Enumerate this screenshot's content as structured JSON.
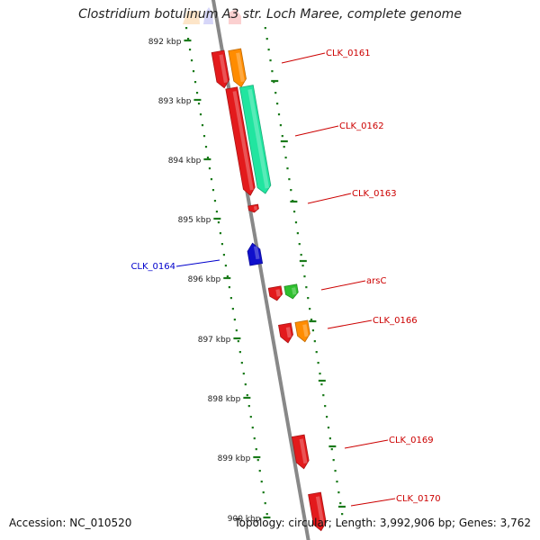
{
  "title": "Clostridium botulinum A3 str. Loch Maree, complete genome",
  "accession": "Accession: NC_010520",
  "topology": "Topology: circular; Length: 3,992,906 bp; Genes: 3,762",
  "colors": {
    "backbone": "#888888",
    "tick": "#1a7a1a",
    "gene_red": "#e31a1c",
    "gene_orange": "#ff8c00",
    "gene_teal": "#21e5a0",
    "gene_green": "#2fc02f",
    "gene_blue": "#1010cc",
    "label_red": "#cc0000",
    "label_blue": "#0000cc"
  },
  "scale": {
    "ticks": [
      "892 kbp",
      "893 kbp",
      "894 kbp",
      "895 kbp",
      "896 kbp",
      "897 kbp",
      "898 kbp",
      "899 kbp",
      "900 kbp"
    ]
  },
  "genes": [
    {
      "label": "CLK_0161",
      "color": "gene_orange",
      "strand": "forward",
      "label_color": "label_red"
    },
    {
      "label": "CLK_0162",
      "color": "gene_teal",
      "strand": "forward",
      "label_color": "label_red"
    },
    {
      "label": "CLK_0163",
      "color": "gene_red",
      "strand": "reverse",
      "label_color": "label_red"
    },
    {
      "label": "CLK_0164",
      "color": "gene_blue",
      "strand": "reverse",
      "label_color": "label_blue"
    },
    {
      "label": "arsC",
      "color": "gene_green",
      "strand": "forward",
      "label_color": "label_red"
    },
    {
      "label": "CLK_0166",
      "color": "gene_orange",
      "strand": "forward",
      "label_color": "label_red"
    },
    {
      "label": "CLK_0169",
      "color": "gene_red",
      "strand": "reverse",
      "label_color": "label_red"
    },
    {
      "label": "CLK_0170",
      "color": "gene_red",
      "strand": "reverse",
      "label_color": "label_red"
    }
  ]
}
